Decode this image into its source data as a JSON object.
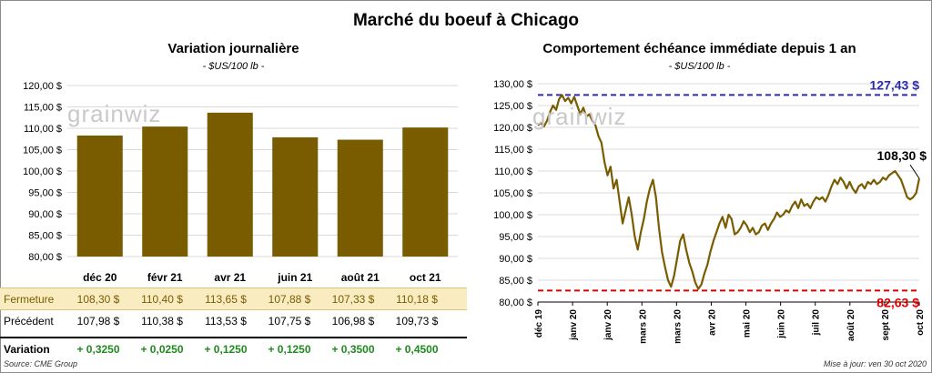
{
  "main_title": "Marché du boeuf à Chicago",
  "left": {
    "title": "Variation journalière",
    "subtitle": "- $US/100 lb -"
  },
  "right": {
    "title": "Comportement échéance immédiate depuis 1 an",
    "subtitle": "- $US/100 lb -",
    "high_label": "127,43 $",
    "low_label": "82,63 $",
    "last_label": "108,30 $"
  },
  "watermark": "grainwiz",
  "table": {
    "rows": [
      {
        "label": "Fermeture",
        "cells": [
          "108,30  $",
          "110,40  $",
          "113,65  $",
          "107,88  $",
          "107,33  $",
          "110,18  $"
        ]
      },
      {
        "label": "Précédent",
        "cells": [
          "107,98  $",
          "110,38  $",
          "113,53  $",
          "107,75  $",
          "106,98  $",
          "109,73  $"
        ]
      },
      {
        "label": "Variation",
        "cells": [
          "+ 0,3250",
          "+ 0,0250",
          "+ 0,1250",
          "+ 0,1250",
          "+ 0,3500",
          "+ 0,4500"
        ]
      }
    ]
  },
  "footer": {
    "source": "Source: CME Group",
    "updated": "Mise à jour: ven 30 oct 2020"
  },
  "colors": {
    "bar": "#7a5c00",
    "line": "#7a5c00",
    "high": "#2b2bb0",
    "low": "#e00000",
    "positive": "#1f8a1f"
  },
  "chart_data": [
    {
      "type": "bar",
      "title": "Variation journalière",
      "subtitle": "- $US/100 lb -",
      "categories": [
        "déc 20",
        "févr 21",
        "avr 21",
        "juin 21",
        "août 21",
        "oct 21"
      ],
      "values": [
        108.3,
        110.4,
        113.65,
        107.88,
        107.33,
        110.18
      ],
      "ylim": [
        80,
        120
      ],
      "yticks": [
        "80,00 $",
        "85,00 $",
        "90,00 $",
        "95,00 $",
        "100,00 $",
        "105,00 $",
        "110,00 $",
        "115,00 $",
        "120,00 $"
      ],
      "grid": true
    },
    {
      "type": "line",
      "title": "Comportement échéance immédiate depuis 1 an",
      "subtitle": "- $US/100 lb -",
      "ylim": [
        80,
        130
      ],
      "yticks": [
        "80,00 $",
        "85,00 $",
        "90,00 $",
        "95,00 $",
        "100,00 $",
        "105,00 $",
        "110,00 $",
        "115,00 $",
        "120,00 $",
        "125,00 $",
        "130,00 $"
      ],
      "xticks": [
        "déc 19",
        "janv 20",
        "janv 20",
        "mars 20",
        "mars 20",
        "avr 20",
        "mai 20",
        "juin 20",
        "juil 20",
        "août 20",
        "sept 20",
        "oct 20"
      ],
      "high": 127.43,
      "low": 82.63,
      "last": 108.3,
      "values": [
        120.5,
        121.0,
        120.2,
        121.5,
        123.5,
        125.0,
        124.0,
        126.5,
        127.4,
        126.0,
        126.8,
        125.5,
        127.0,
        125.0,
        123.0,
        124.5,
        122.5,
        123.0,
        121.5,
        120.5,
        118.0,
        116.5,
        112.0,
        109.0,
        111.0,
        106.0,
        108.0,
        103.0,
        98.0,
        101.0,
        104.0,
        100.0,
        95.0,
        92.0,
        96.0,
        99.0,
        103.0,
        106.0,
        108.0,
        104.0,
        97.0,
        91.5,
        88.0,
        85.0,
        83.5,
        86.0,
        90.0,
        94.0,
        95.5,
        92.0,
        89.0,
        87.0,
        84.5,
        83.0,
        84.0,
        86.5,
        88.5,
        91.5,
        94.0,
        96.0,
        98.0,
        99.5,
        97.0,
        100.0,
        99.0,
        95.5,
        96.0,
        97.0,
        98.5,
        97.5,
        96.0,
        97.0,
        95.5,
        96.0,
        97.5,
        98.0,
        96.5,
        98.0,
        99.0,
        100.5,
        99.5,
        100.0,
        101.0,
        100.5,
        102.0,
        103.0,
        101.5,
        103.5,
        102.0,
        102.5,
        101.5,
        103.0,
        104.0,
        103.5,
        104.0,
        103.0,
        104.5,
        106.5,
        108.0,
        107.0,
        108.5,
        107.5,
        106.0,
        107.5,
        106.0,
        105.0,
        106.5,
        107.0,
        106.0,
        107.5,
        107.0,
        108.0,
        107.0,
        107.5,
        108.5,
        108.0,
        109.0,
        109.5,
        110.0,
        109.0,
        108.0,
        106.0,
        104.0,
        103.5,
        104.0,
        105.0,
        108.3
      ]
    }
  ]
}
